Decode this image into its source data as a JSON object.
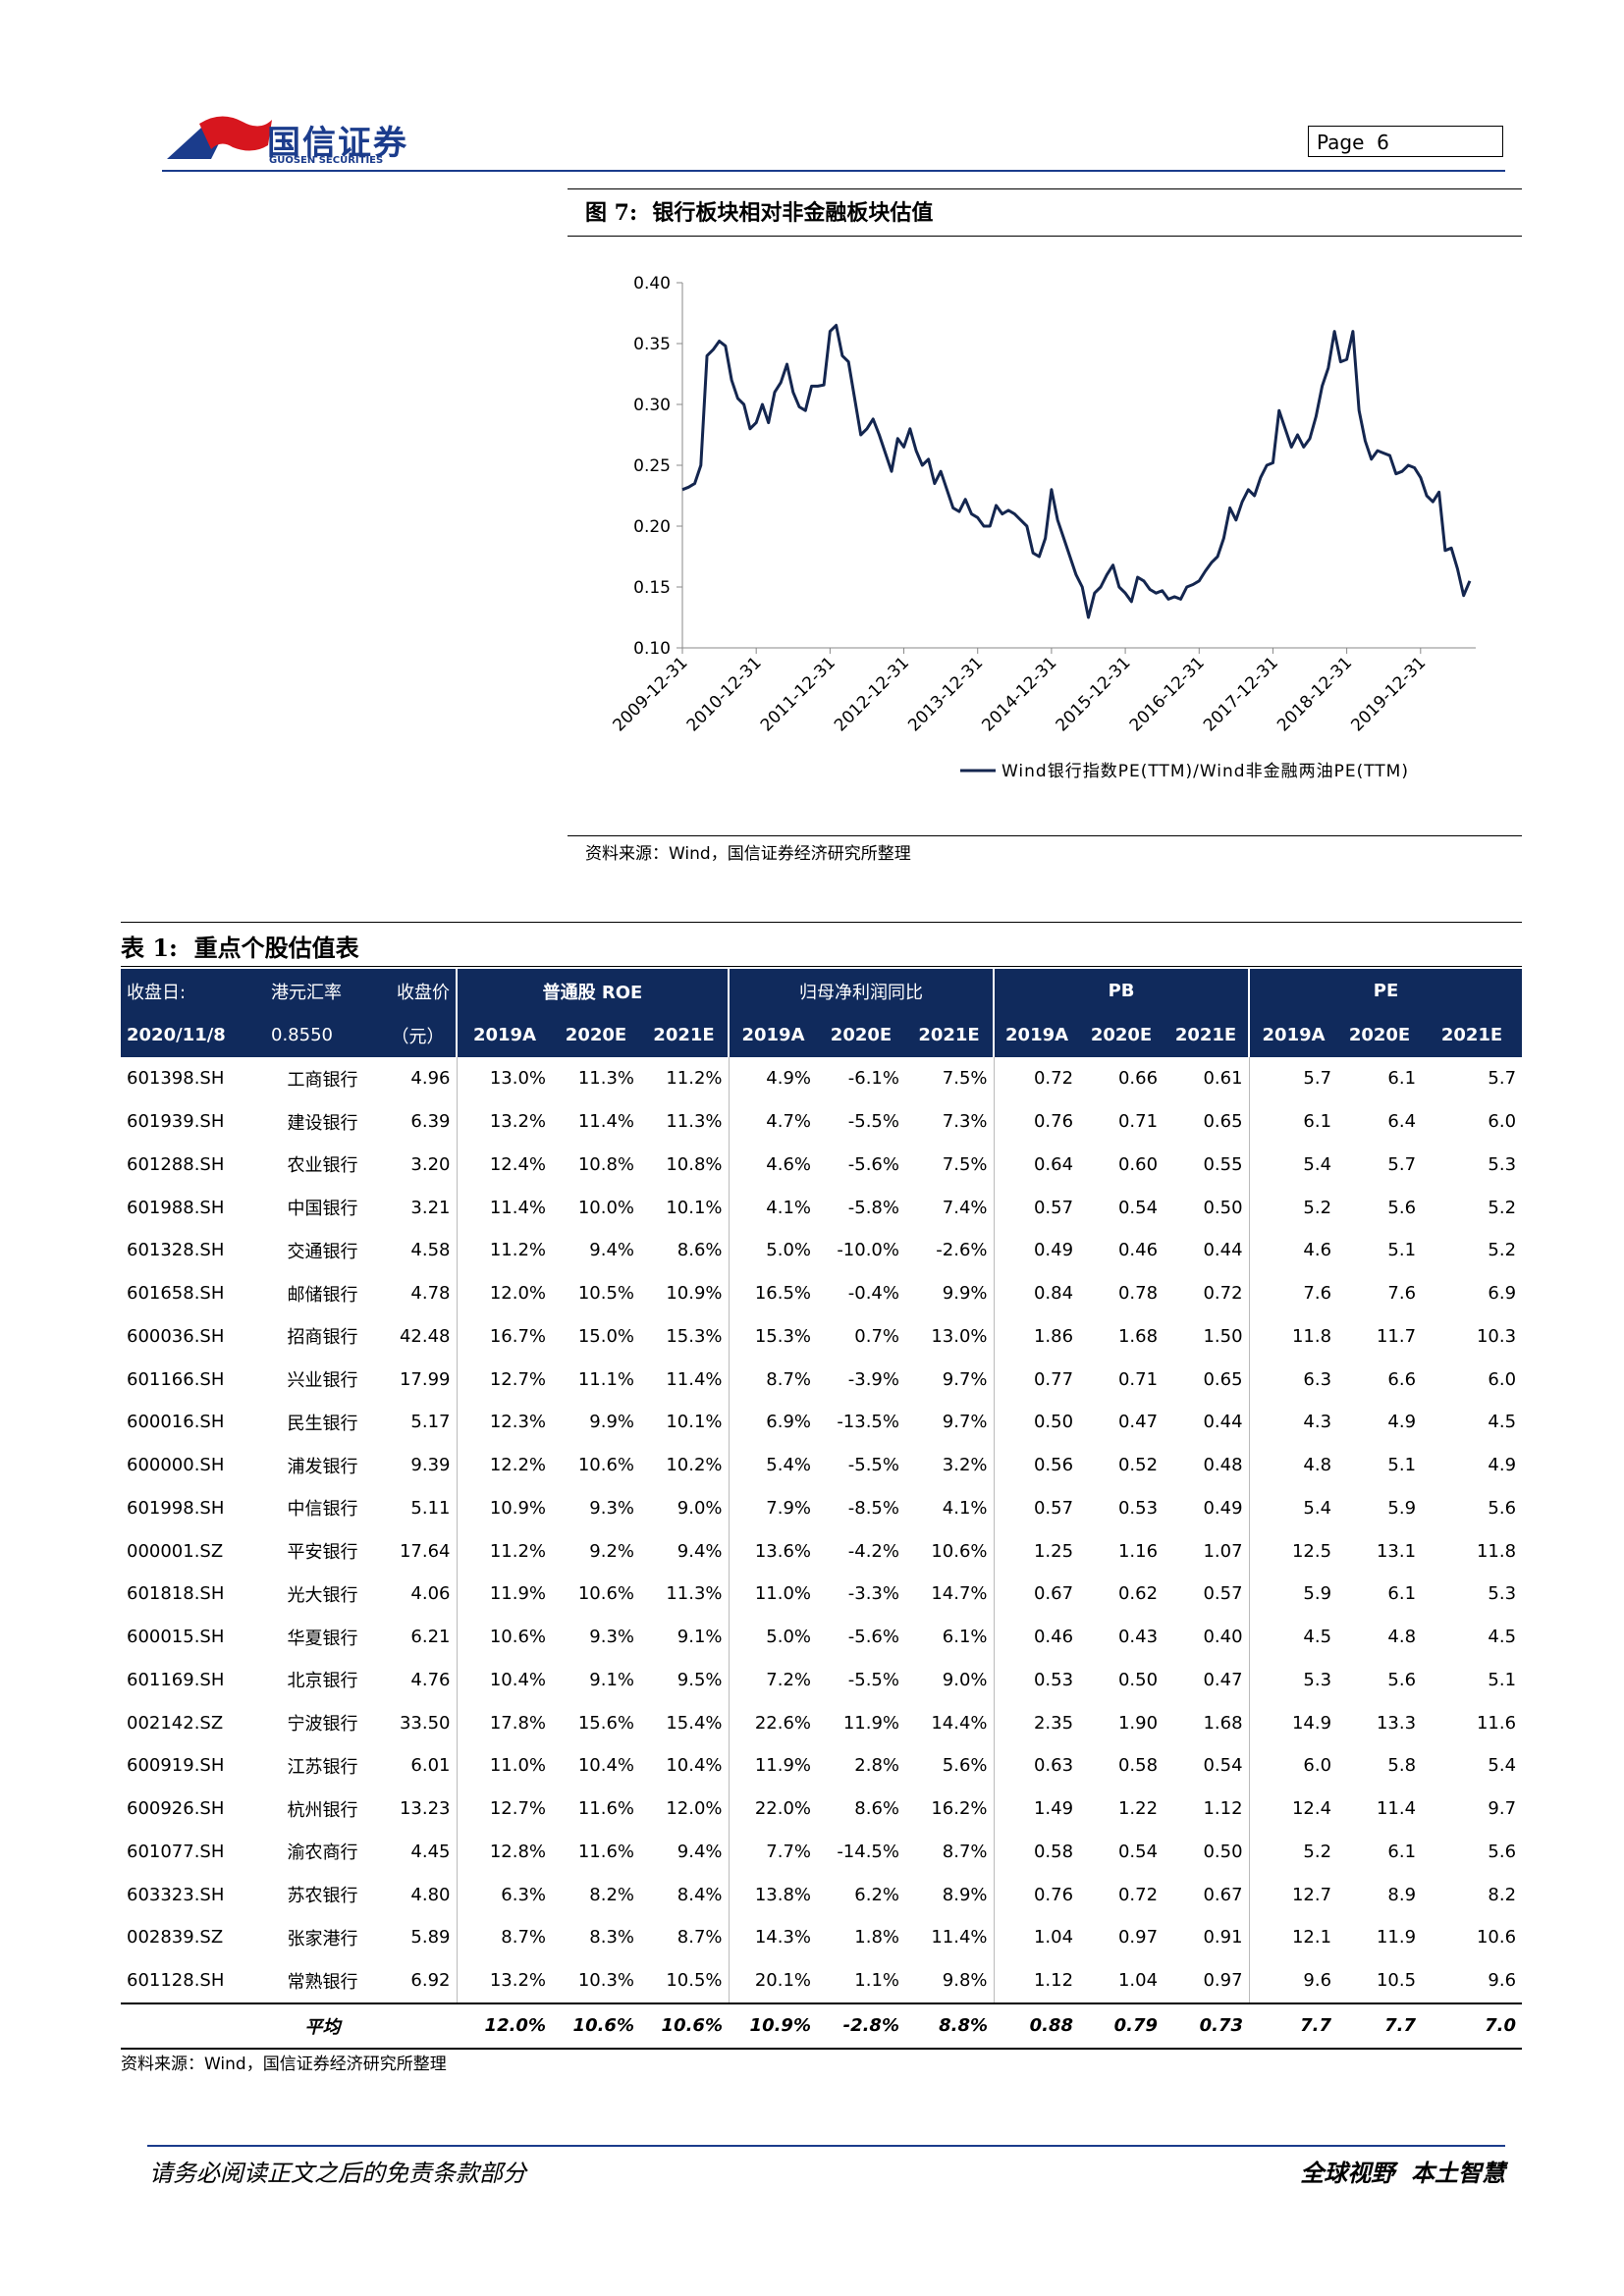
{
  "header": {
    "logo_cn": "国信证券",
    "logo_en": "GUOSEN SECURITIES",
    "page": "Page  6"
  },
  "figure": {
    "label": "图 7:",
    "title": "银行板块相对非金融板块估值",
    "source": "资料来源：Wind，国信证券经济研究所整理"
  },
  "chart_data": {
    "type": "line",
    "x": [
      "2009-12",
      "2010-01",
      "2010-02",
      "2010-03",
      "2010-04",
      "2010-05",
      "2010-06",
      "2010-07",
      "2010-08",
      "2010-09",
      "2010-10",
      "2010-11",
      "2010-12",
      "2011-01",
      "2011-02",
      "2011-03",
      "2011-04",
      "2011-05",
      "2011-06",
      "2011-07",
      "2011-08",
      "2011-09",
      "2011-10",
      "2011-11",
      "2011-12",
      "2012-01",
      "2012-02",
      "2012-03",
      "2012-04",
      "2012-05",
      "2012-06",
      "2012-07",
      "2012-08",
      "2012-09",
      "2012-10",
      "2012-11",
      "2012-12",
      "2013-01",
      "2013-02",
      "2013-03",
      "2013-04",
      "2013-05",
      "2013-06",
      "2013-07",
      "2013-08",
      "2013-09",
      "2013-10",
      "2013-11",
      "2013-12",
      "2014-01",
      "2014-02",
      "2014-03",
      "2014-04",
      "2014-05",
      "2014-06",
      "2014-07",
      "2014-08",
      "2014-09",
      "2014-10",
      "2014-11",
      "2014-12",
      "2015-01",
      "2015-02",
      "2015-03",
      "2015-04",
      "2015-05",
      "2015-06",
      "2015-07",
      "2015-08",
      "2015-09",
      "2015-10",
      "2015-11",
      "2015-12",
      "2016-01",
      "2016-02",
      "2016-03",
      "2016-04",
      "2016-05",
      "2016-06",
      "2016-07",
      "2016-08",
      "2016-09",
      "2016-10",
      "2016-11",
      "2016-12",
      "2017-01",
      "2017-02",
      "2017-03",
      "2017-04",
      "2017-05",
      "2017-06",
      "2017-07",
      "2017-08",
      "2017-09",
      "2017-10",
      "2017-11",
      "2017-12",
      "2018-01",
      "2018-02",
      "2018-03",
      "2018-04",
      "2018-05",
      "2018-06",
      "2018-07",
      "2018-08",
      "2018-09",
      "2018-10",
      "2018-11",
      "2018-12",
      "2019-01",
      "2019-02",
      "2019-03",
      "2019-04",
      "2019-05",
      "2019-06",
      "2019-07",
      "2019-08",
      "2019-09",
      "2019-10",
      "2019-11",
      "2019-12",
      "2020-01",
      "2020-02",
      "2020-03",
      "2020-04",
      "2020-05",
      "2020-06",
      "2020-07",
      "2020-08"
    ],
    "series": [
      {
        "name": "Wind银行指数PE(TTM)/Wind非金融两油PE(TTM)",
        "color": "#14264f",
        "values": [
          0.23,
          0.232,
          0.235,
          0.25,
          0.34,
          0.345,
          0.352,
          0.348,
          0.32,
          0.305,
          0.3,
          0.28,
          0.285,
          0.3,
          0.285,
          0.31,
          0.318,
          0.333,
          0.31,
          0.298,
          0.295,
          0.315,
          0.315,
          0.316,
          0.36,
          0.365,
          0.34,
          0.335,
          0.305,
          0.275,
          0.28,
          0.288,
          0.275,
          0.26,
          0.245,
          0.272,
          0.265,
          0.28,
          0.262,
          0.25,
          0.255,
          0.235,
          0.245,
          0.23,
          0.215,
          0.212,
          0.222,
          0.21,
          0.207,
          0.2,
          0.2,
          0.217,
          0.21,
          0.213,
          0.21,
          0.205,
          0.2,
          0.178,
          0.175,
          0.19,
          0.23,
          0.205,
          0.19,
          0.175,
          0.16,
          0.15,
          0.125,
          0.145,
          0.15,
          0.16,
          0.168,
          0.15,
          0.145,
          0.138,
          0.158,
          0.155,
          0.148,
          0.145,
          0.147,
          0.14,
          0.142,
          0.14,
          0.15,
          0.152,
          0.155,
          0.163,
          0.17,
          0.175,
          0.19,
          0.215,
          0.205,
          0.22,
          0.23,
          0.225,
          0.24,
          0.25,
          0.252,
          0.295,
          0.28,
          0.265,
          0.275,
          0.265,
          0.272,
          0.29,
          0.315,
          0.33,
          0.36,
          0.335,
          0.337,
          0.36,
          0.295,
          0.27,
          0.255,
          0.262,
          0.26,
          0.258,
          0.243,
          0.245,
          0.25,
          0.248,
          0.24,
          0.225,
          0.22,
          0.228,
          0.18,
          0.182,
          0.165,
          0.143,
          0.155
        ]
      }
    ],
    "xlim": [
      "2009-12-31",
      "2020-09-30"
    ],
    "xticks": [
      "2009-12-31",
      "2010-12-31",
      "2011-12-31",
      "2012-12-31",
      "2013-12-31",
      "2014-12-31",
      "2015-12-31",
      "2016-12-31",
      "2017-12-31",
      "2018-12-31",
      "2019-12-31"
    ],
    "ylim": [
      0.1,
      0.4
    ],
    "yticks": [
      {
        "value": 0.1,
        "label": "0.10"
      },
      {
        "value": 0.15,
        "label": "0.15"
      },
      {
        "value": 0.2,
        "label": "0.20"
      },
      {
        "value": 0.25,
        "label": "0.25"
      },
      {
        "value": 0.3,
        "label": "0.30"
      },
      {
        "value": 0.35,
        "label": "0.35"
      },
      {
        "value": 0.4,
        "label": "0.40"
      }
    ],
    "legend": "bottom"
  },
  "table": {
    "label": "表 1:",
    "title": "重点个股估值表",
    "columns_top": [
      "收盘日:",
      "港元汇率",
      "收盘价"
    ],
    "groups": [
      "普通股 ROE",
      "归母净利润同比",
      "PB",
      "PE"
    ],
    "columns_sub": [
      "2020/11/8",
      "0.8550",
      "（元）"
    ],
    "years": [
      "2019A",
      "2020E",
      "2021E",
      "2019A",
      "2020E",
      "2021E",
      "2019A",
      "2020E",
      "2021E",
      "2019A",
      "2020E",
      "2021E"
    ],
    "rows": [
      [
        "601398.SH",
        "工商银行",
        "4.96",
        "13.0%",
        "11.3%",
        "11.2%",
        "4.9%",
        "-6.1%",
        "7.5%",
        "0.72",
        "0.66",
        "0.61",
        "5.7",
        "6.1",
        "5.7"
      ],
      [
        "601939.SH",
        "建设银行",
        "6.39",
        "13.2%",
        "11.4%",
        "11.3%",
        "4.7%",
        "-5.5%",
        "7.3%",
        "0.76",
        "0.71",
        "0.65",
        "6.1",
        "6.4",
        "6.0"
      ],
      [
        "601288.SH",
        "农业银行",
        "3.20",
        "12.4%",
        "10.8%",
        "10.8%",
        "4.6%",
        "-5.6%",
        "7.5%",
        "0.64",
        "0.60",
        "0.55",
        "5.4",
        "5.7",
        "5.3"
      ],
      [
        "601988.SH",
        "中国银行",
        "3.21",
        "11.4%",
        "10.0%",
        "10.1%",
        "4.1%",
        "-5.8%",
        "7.4%",
        "0.57",
        "0.54",
        "0.50",
        "5.2",
        "5.6",
        "5.2"
      ],
      [
        "601328.SH",
        "交通银行",
        "4.58",
        "11.2%",
        "9.4%",
        "8.6%",
        "5.0%",
        "-10.0%",
        "-2.6%",
        "0.49",
        "0.46",
        "0.44",
        "4.6",
        "5.1",
        "5.2"
      ],
      [
        "601658.SH",
        "邮储银行",
        "4.78",
        "12.0%",
        "10.5%",
        "10.9%",
        "16.5%",
        "-0.4%",
        "9.9%",
        "0.84",
        "0.78",
        "0.72",
        "7.6",
        "7.6",
        "6.9"
      ],
      [
        "600036.SH",
        "招商银行",
        "42.48",
        "16.7%",
        "15.0%",
        "15.3%",
        "15.3%",
        "0.7%",
        "13.0%",
        "1.86",
        "1.68",
        "1.50",
        "11.8",
        "11.7",
        "10.3"
      ],
      [
        "601166.SH",
        "兴业银行",
        "17.99",
        "12.7%",
        "11.1%",
        "11.4%",
        "8.7%",
        "-3.9%",
        "9.7%",
        "0.77",
        "0.71",
        "0.65",
        "6.3",
        "6.6",
        "6.0"
      ],
      [
        "600016.SH",
        "民生银行",
        "5.17",
        "12.3%",
        "9.9%",
        "10.1%",
        "6.9%",
        "-13.5%",
        "9.7%",
        "0.50",
        "0.47",
        "0.44",
        "4.3",
        "4.9",
        "4.5"
      ],
      [
        "600000.SH",
        "浦发银行",
        "9.39",
        "12.2%",
        "10.6%",
        "10.2%",
        "5.4%",
        "-5.5%",
        "3.2%",
        "0.56",
        "0.52",
        "0.48",
        "4.8",
        "5.1",
        "4.9"
      ],
      [
        "601998.SH",
        "中信银行",
        "5.11",
        "10.9%",
        "9.3%",
        "9.0%",
        "7.9%",
        "-8.5%",
        "4.1%",
        "0.57",
        "0.53",
        "0.49",
        "5.4",
        "5.9",
        "5.6"
      ],
      [
        "000001.SZ",
        "平安银行",
        "17.64",
        "11.2%",
        "9.2%",
        "9.4%",
        "13.6%",
        "-4.2%",
        "10.6%",
        "1.25",
        "1.16",
        "1.07",
        "12.5",
        "13.1",
        "11.8"
      ],
      [
        "601818.SH",
        "光大银行",
        "4.06",
        "11.9%",
        "10.6%",
        "11.3%",
        "11.0%",
        "-3.3%",
        "14.7%",
        "0.67",
        "0.62",
        "0.57",
        "5.9",
        "6.1",
        "5.3"
      ],
      [
        "600015.SH",
        "华夏银行",
        "6.21",
        "10.6%",
        "9.3%",
        "9.1%",
        "5.0%",
        "-5.6%",
        "6.1%",
        "0.46",
        "0.43",
        "0.40",
        "4.5",
        "4.8",
        "4.5"
      ],
      [
        "601169.SH",
        "北京银行",
        "4.76",
        "10.4%",
        "9.1%",
        "9.5%",
        "7.2%",
        "-5.5%",
        "9.0%",
        "0.53",
        "0.50",
        "0.47",
        "5.3",
        "5.6",
        "5.1"
      ],
      [
        "002142.SZ",
        "宁波银行",
        "33.50",
        "17.8%",
        "15.6%",
        "15.4%",
        "22.6%",
        "11.9%",
        "14.4%",
        "2.35",
        "1.90",
        "1.68",
        "14.9",
        "13.3",
        "11.6"
      ],
      [
        "600919.SH",
        "江苏银行",
        "6.01",
        "11.0%",
        "10.4%",
        "10.4%",
        "11.9%",
        "2.8%",
        "5.6%",
        "0.63",
        "0.58",
        "0.54",
        "6.0",
        "5.8",
        "5.4"
      ],
      [
        "600926.SH",
        "杭州银行",
        "13.23",
        "12.7%",
        "11.6%",
        "12.0%",
        "22.0%",
        "8.6%",
        "16.2%",
        "1.49",
        "1.22",
        "1.12",
        "12.4",
        "11.4",
        "9.7"
      ],
      [
        "601077.SH",
        "渝农商行",
        "4.45",
        "12.8%",
        "11.6%",
        "9.4%",
        "7.7%",
        "-14.5%",
        "8.7%",
        "0.58",
        "0.54",
        "0.50",
        "5.2",
        "6.1",
        "5.6"
      ],
      [
        "603323.SH",
        "苏农银行",
        "4.80",
        "6.3%",
        "8.2%",
        "8.4%",
        "13.8%",
        "6.2%",
        "8.9%",
        "0.76",
        "0.72",
        "0.67",
        "12.7",
        "8.9",
        "8.2"
      ],
      [
        "002839.SZ",
        "张家港行",
        "5.89",
        "8.7%",
        "8.3%",
        "8.7%",
        "14.3%",
        "1.8%",
        "11.4%",
        "1.04",
        "0.97",
        "0.91",
        "12.1",
        "11.9",
        "10.6"
      ],
      [
        "601128.SH",
        "常熟银行",
        "6.92",
        "13.2%",
        "10.3%",
        "10.5%",
        "20.1%",
        "1.1%",
        "9.8%",
        "1.12",
        "1.04",
        "0.97",
        "9.6",
        "10.5",
        "9.6"
      ]
    ],
    "average": {
      "label": "平均",
      "values": [
        "12.0%",
        "10.6%",
        "10.6%",
        "10.9%",
        "-2.8%",
        "8.8%",
        "0.88",
        "0.79",
        "0.73",
        "7.7",
        "7.7",
        "7.0"
      ]
    },
    "source": "资料来源：Wind，国信证券经济研究所整理"
  },
  "footer": {
    "left": "请务必阅读正文之后的免责条款部分",
    "right": "全球视野  本土智慧"
  }
}
